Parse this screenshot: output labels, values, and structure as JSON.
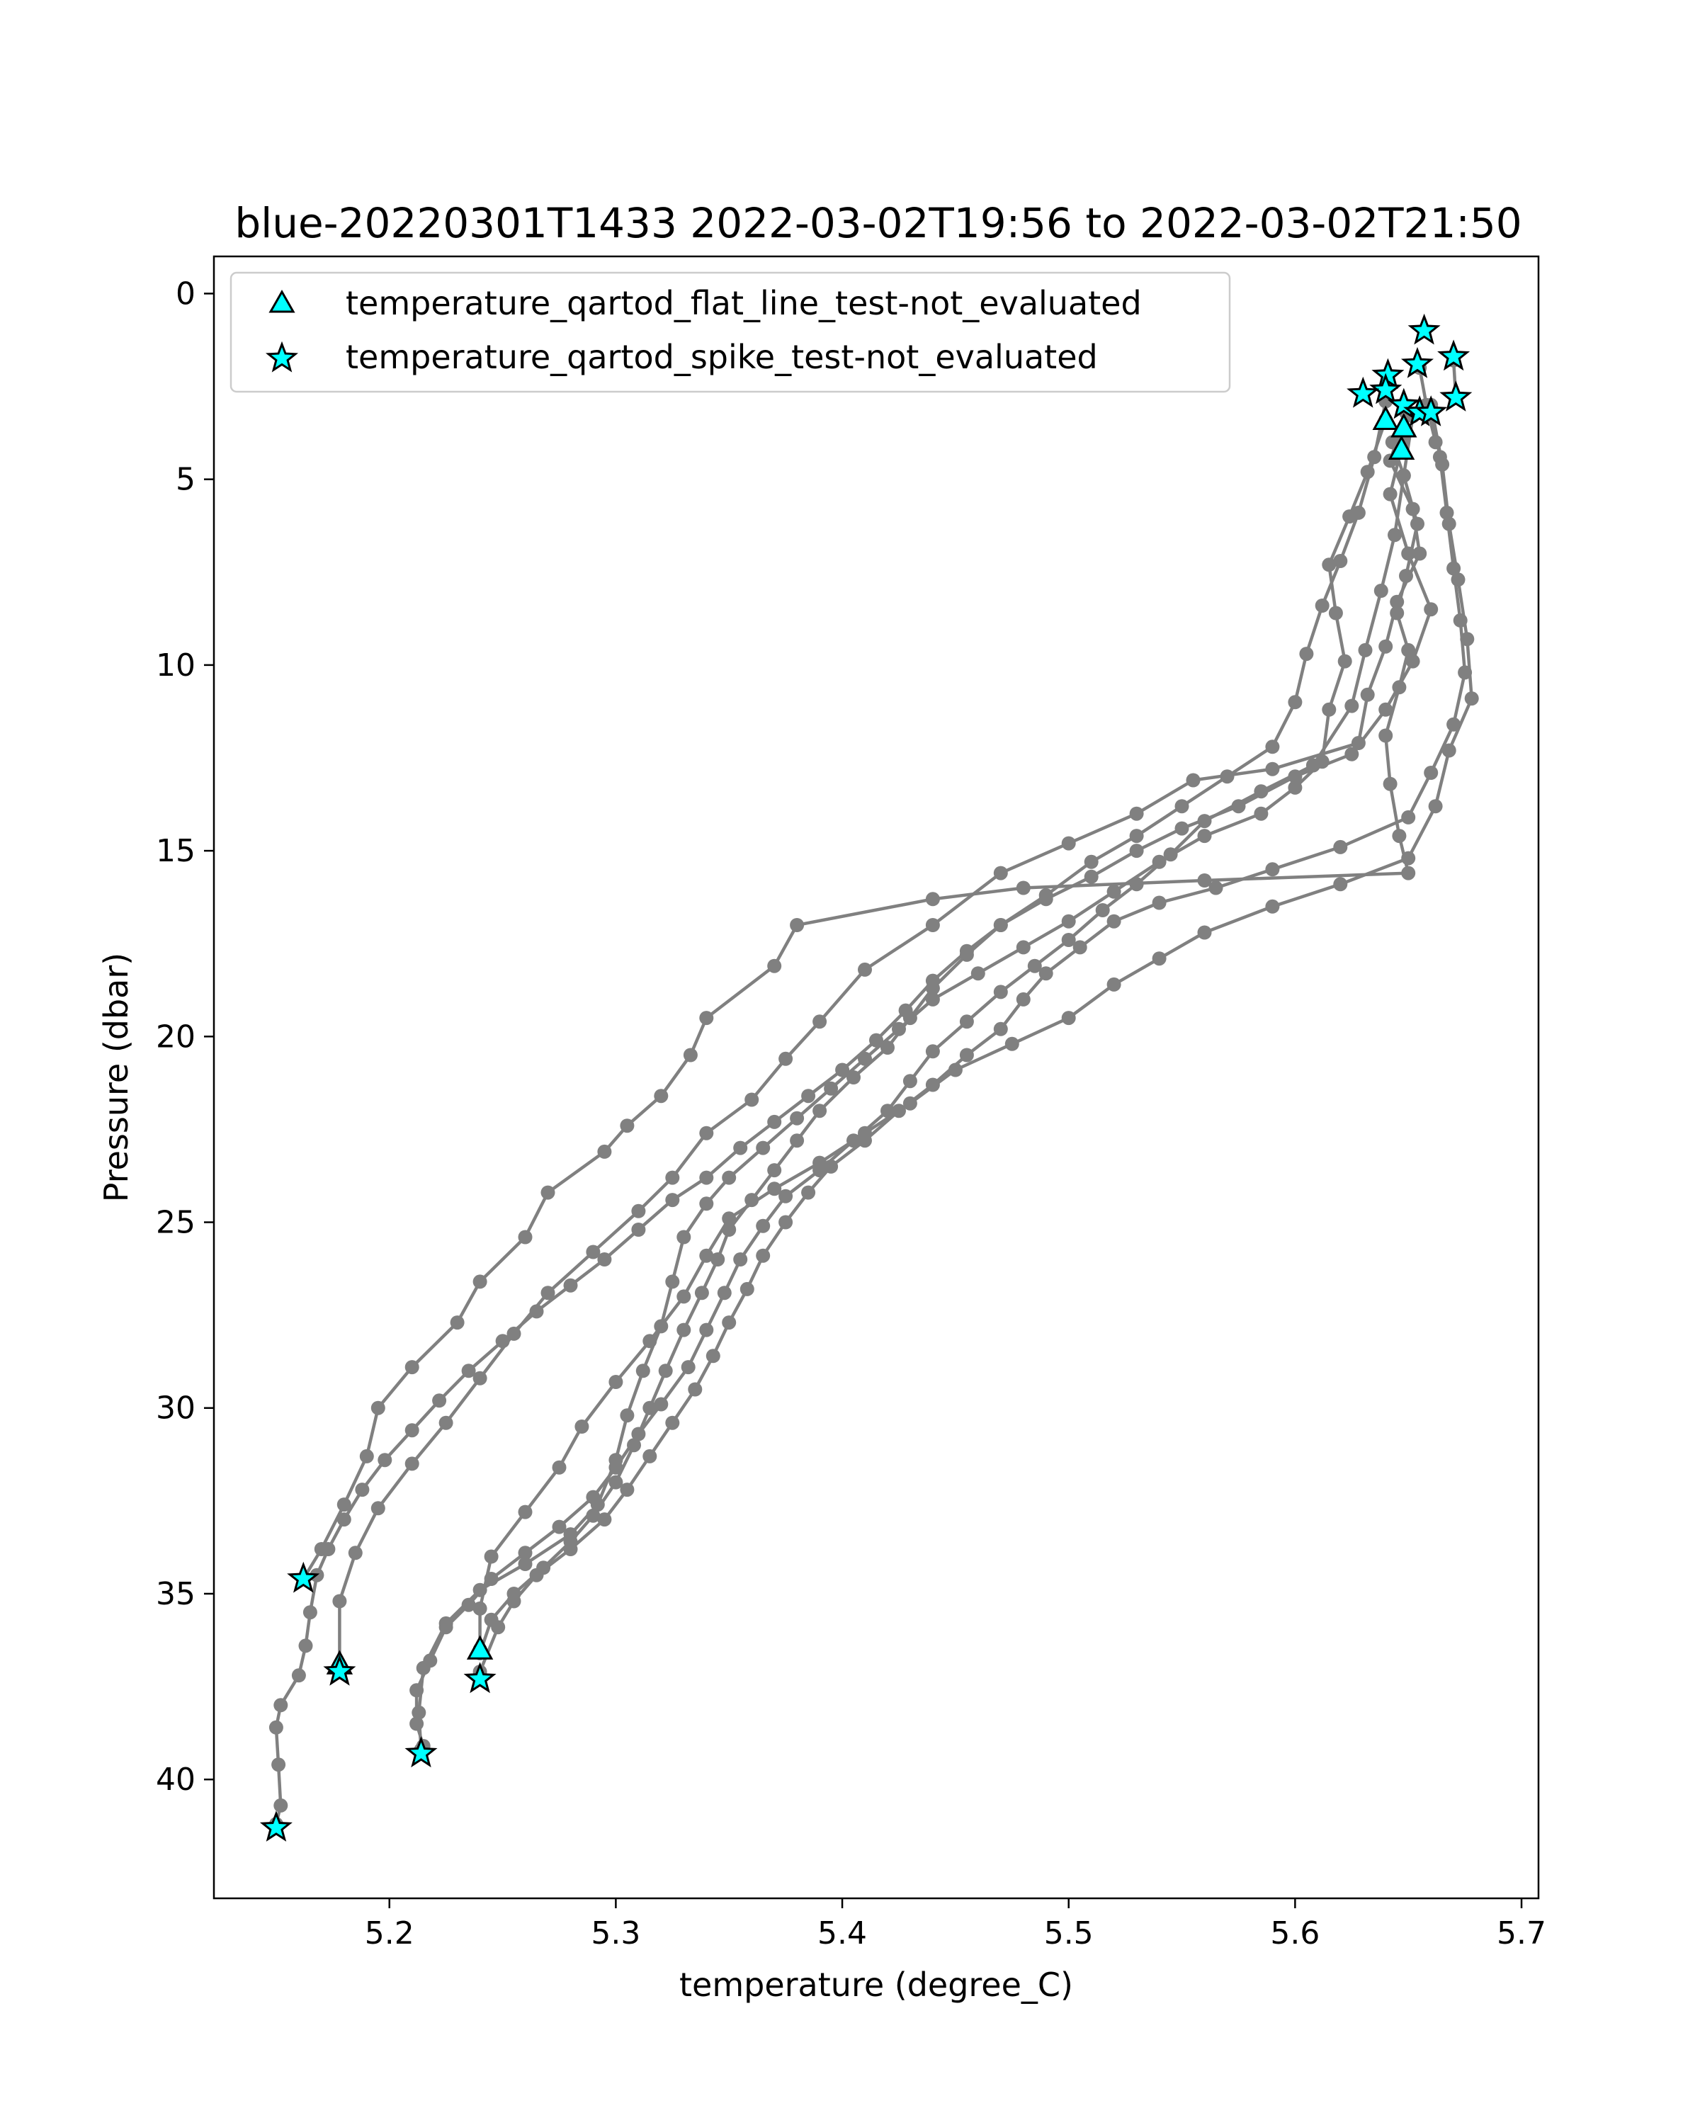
{
  "chart_data": {
    "type": "scatter",
    "title": "blue-20220301T1433 2022-03-02T19:56 to 2022-03-02T21:50",
    "xlabel": "temperature (degree_C)",
    "ylabel": "Pressure (dbar)",
    "xlim": [
      5.1225,
      5.7075
    ],
    "ylim": [
      43.2,
      -1.0
    ],
    "y_inverted": true,
    "xticks": [
      5.2,
      5.3,
      5.4,
      5.5,
      5.6,
      5.7
    ],
    "xtick_labels": [
      "5.2",
      "5.3",
      "5.4",
      "5.5",
      "5.6",
      "5.7"
    ],
    "yticks": [
      0,
      5,
      10,
      15,
      20,
      25,
      30,
      35,
      40
    ],
    "ytick_labels": [
      "0",
      "5",
      "10",
      "15",
      "20",
      "25",
      "30",
      "35",
      "40"
    ],
    "grid": false,
    "legend_position": "upper-left",
    "colors": {
      "profile_line": "#808080",
      "marker_fill": "#00ffff",
      "marker_edge": "#000000"
    },
    "profiles": [
      [
        [
          5.643,
          4.0
        ],
        [
          5.648,
          4.9
        ],
        [
          5.654,
          6.2
        ],
        [
          5.649,
          7.6
        ],
        [
          5.645,
          8.6
        ],
        [
          5.65,
          9.6
        ],
        [
          5.646,
          10.6
        ],
        [
          5.64,
          11.9
        ],
        [
          5.642,
          13.2
        ],
        [
          5.646,
          14.6
        ],
        [
          5.65,
          15.6
        ],
        [
          5.56,
          15.8
        ],
        [
          5.48,
          16.0
        ],
        [
          5.44,
          16.3
        ],
        [
          5.38,
          17.0
        ],
        [
          5.37,
          18.1
        ],
        [
          5.34,
          19.5
        ],
        [
          5.333,
          20.5
        ],
        [
          5.32,
          21.6
        ],
        [
          5.305,
          22.4
        ],
        [
          5.295,
          23.1
        ],
        [
          5.27,
          24.2
        ],
        [
          5.26,
          25.4
        ],
        [
          5.24,
          26.6
        ],
        [
          5.23,
          27.7
        ],
        [
          5.21,
          28.9
        ],
        [
          5.195,
          30.0
        ],
        [
          5.19,
          31.3
        ],
        [
          5.18,
          32.6
        ],
        [
          5.17,
          33.8
        ],
        [
          5.162,
          34.6
        ]
      ],
      [
        [
          5.649,
          3.2
        ],
        [
          5.642,
          4.5
        ],
        [
          5.652,
          5.8
        ],
        [
          5.655,
          7.0
        ],
        [
          5.645,
          8.3
        ],
        [
          5.64,
          9.5
        ],
        [
          5.632,
          10.8
        ],
        [
          5.628,
          12.1
        ],
        [
          5.59,
          12.8
        ],
        [
          5.555,
          13.1
        ],
        [
          5.53,
          14.0
        ],
        [
          5.5,
          14.8
        ],
        [
          5.47,
          15.6
        ],
        [
          5.44,
          17.0
        ],
        [
          5.41,
          18.2
        ],
        [
          5.39,
          19.6
        ],
        [
          5.375,
          20.6
        ],
        [
          5.36,
          21.7
        ],
        [
          5.34,
          22.6
        ],
        [
          5.325,
          23.8
        ],
        [
          5.31,
          24.7
        ],
        [
          5.29,
          25.8
        ],
        [
          5.27,
          26.9
        ],
        [
          5.255,
          28.0
        ],
        [
          5.24,
          29.2
        ],
        [
          5.225,
          30.4
        ],
        [
          5.21,
          31.5
        ],
        [
          5.195,
          32.7
        ],
        [
          5.185,
          33.9
        ],
        [
          5.178,
          35.2
        ],
        [
          5.178,
          37.0
        ]
      ],
      [
        [
          5.66,
          3.0
        ],
        [
          5.665,
          4.6
        ],
        [
          5.668,
          6.2
        ],
        [
          5.672,
          7.7
        ],
        [
          5.676,
          9.3
        ],
        [
          5.678,
          10.9
        ],
        [
          5.668,
          12.3
        ],
        [
          5.662,
          13.8
        ],
        [
          5.65,
          15.2
        ],
        [
          5.62,
          15.9
        ],
        [
          5.59,
          16.5
        ],
        [
          5.56,
          17.2
        ],
        [
          5.54,
          17.9
        ],
        [
          5.52,
          18.6
        ],
        [
          5.5,
          19.5
        ],
        [
          5.475,
          20.2
        ],
        [
          5.45,
          20.9
        ],
        [
          5.43,
          21.8
        ],
        [
          5.41,
          22.6
        ],
        [
          5.39,
          23.4
        ],
        [
          5.37,
          24.1
        ],
        [
          5.35,
          24.9
        ],
        [
          5.34,
          25.9
        ],
        [
          5.33,
          27.0
        ],
        [
          5.315,
          28.2
        ],
        [
          5.3,
          29.3
        ],
        [
          5.285,
          30.5
        ],
        [
          5.275,
          31.6
        ],
        [
          5.26,
          32.8
        ],
        [
          5.245,
          34.0
        ],
        [
          5.24,
          35.4
        ],
        [
          5.24,
          36.5
        ]
      ],
      [
        [
          5.64,
          3.4
        ],
        [
          5.632,
          4.8
        ],
        [
          5.624,
          6.0
        ],
        [
          5.615,
          7.3
        ],
        [
          5.618,
          8.6
        ],
        [
          5.622,
          9.9
        ],
        [
          5.615,
          11.2
        ],
        [
          5.612,
          12.6
        ],
        [
          5.6,
          13.3
        ],
        [
          5.585,
          14.0
        ],
        [
          5.56,
          14.6
        ],
        [
          5.54,
          15.3
        ],
        [
          5.52,
          16.1
        ],
        [
          5.5,
          16.9
        ],
        [
          5.48,
          17.6
        ],
        [
          5.46,
          18.3
        ],
        [
          5.44,
          19.0
        ],
        [
          5.425,
          19.8
        ],
        [
          5.41,
          20.6
        ],
        [
          5.395,
          21.4
        ],
        [
          5.38,
          22.2
        ],
        [
          5.365,
          23.0
        ],
        [
          5.35,
          23.8
        ],
        [
          5.34,
          24.5
        ],
        [
          5.33,
          25.4
        ],
        [
          5.325,
          26.6
        ],
        [
          5.32,
          27.8
        ],
        [
          5.312,
          29.0
        ],
        [
          5.305,
          30.2
        ],
        [
          5.3,
          31.4
        ],
        [
          5.292,
          32.6
        ],
        [
          5.28,
          33.4
        ],
        [
          5.26,
          34.2
        ],
        [
          5.24,
          34.9
        ],
        [
          5.225,
          35.8
        ],
        [
          5.215,
          37.0
        ],
        [
          5.213,
          38.2
        ],
        [
          5.214,
          39.2
        ]
      ],
      [
        [
          5.652,
          3.3
        ],
        [
          5.648,
          4.9
        ],
        [
          5.644,
          6.5
        ],
        [
          5.638,
          8.0
        ],
        [
          5.631,
          9.6
        ],
        [
          5.625,
          11.1
        ],
        [
          5.608,
          12.7
        ],
        [
          5.585,
          13.4
        ],
        [
          5.56,
          14.2
        ],
        [
          5.545,
          15.1
        ],
        [
          5.53,
          15.9
        ],
        [
          5.515,
          16.6
        ],
        [
          5.5,
          17.4
        ],
        [
          5.485,
          18.1
        ],
        [
          5.47,
          18.8
        ],
        [
          5.455,
          19.6
        ],
        [
          5.44,
          20.4
        ],
        [
          5.43,
          21.2
        ],
        [
          5.42,
          22.0
        ],
        [
          5.405,
          22.8
        ],
        [
          5.39,
          23.6
        ],
        [
          5.375,
          24.3
        ],
        [
          5.365,
          25.1
        ],
        [
          5.355,
          26.0
        ],
        [
          5.348,
          26.9
        ],
        [
          5.34,
          27.9
        ],
        [
          5.332,
          28.9
        ],
        [
          5.32,
          29.9
        ],
        [
          5.31,
          30.7
        ],
        [
          5.3,
          31.6
        ],
        [
          5.29,
          32.4
        ],
        [
          5.275,
          33.2
        ],
        [
          5.26,
          33.9
        ],
        [
          5.245,
          34.6
        ],
        [
          5.235,
          35.3
        ],
        [
          5.225,
          35.9
        ],
        [
          5.218,
          36.8
        ],
        [
          5.212,
          37.6
        ],
        [
          5.212,
          38.5
        ],
        [
          5.215,
          39.1
        ]
      ],
      [
        [
          5.66,
          3.1
        ],
        [
          5.664,
          4.4
        ],
        [
          5.667,
          5.9
        ],
        [
          5.67,
          7.4
        ],
        [
          5.673,
          8.8
        ],
        [
          5.675,
          10.2
        ],
        [
          5.67,
          11.6
        ],
        [
          5.66,
          12.9
        ],
        [
          5.65,
          14.1
        ],
        [
          5.62,
          14.9
        ],
        [
          5.59,
          15.5
        ],
        [
          5.565,
          16.0
        ],
        [
          5.54,
          16.4
        ],
        [
          5.52,
          16.9
        ],
        [
          5.505,
          17.6
        ],
        [
          5.49,
          18.3
        ],
        [
          5.48,
          19.0
        ],
        [
          5.47,
          19.8
        ],
        [
          5.455,
          20.5
        ],
        [
          5.44,
          21.3
        ],
        [
          5.425,
          22.0
        ],
        [
          5.41,
          22.8
        ],
        [
          5.395,
          23.5
        ],
        [
          5.385,
          24.2
        ],
        [
          5.375,
          25.0
        ],
        [
          5.365,
          25.9
        ],
        [
          5.358,
          26.8
        ],
        [
          5.35,
          27.7
        ],
        [
          5.343,
          28.6
        ],
        [
          5.335,
          29.5
        ],
        [
          5.325,
          30.4
        ],
        [
          5.315,
          31.3
        ],
        [
          5.305,
          32.2
        ],
        [
          5.295,
          33.0
        ],
        [
          5.28,
          33.8
        ],
        [
          5.265,
          34.5
        ],
        [
          5.255,
          35.2
        ],
        [
          5.248,
          35.9
        ],
        [
          5.24,
          37.1
        ]
      ],
      [
        [
          5.648,
          3.9
        ],
        [
          5.642,
          5.4
        ],
        [
          5.65,
          7.0
        ],
        [
          5.66,
          8.5
        ],
        [
          5.652,
          9.9
        ],
        [
          5.64,
          11.2
        ],
        [
          5.625,
          12.4
        ],
        [
          5.6,
          13.0
        ],
        [
          5.575,
          13.8
        ],
        [
          5.55,
          14.4
        ],
        [
          5.53,
          15.0
        ],
        [
          5.51,
          15.7
        ],
        [
          5.49,
          16.3
        ],
        [
          5.47,
          17.0
        ],
        [
          5.455,
          17.7
        ],
        [
          5.44,
          18.5
        ],
        [
          5.428,
          19.3
        ],
        [
          5.415,
          20.1
        ],
        [
          5.4,
          20.9
        ],
        [
          5.385,
          21.6
        ],
        [
          5.37,
          22.3
        ],
        [
          5.355,
          23.0
        ],
        [
          5.34,
          23.8
        ],
        [
          5.325,
          24.4
        ],
        [
          5.31,
          25.2
        ],
        [
          5.295,
          26.0
        ],
        [
          5.28,
          26.7
        ],
        [
          5.265,
          27.4
        ],
        [
          5.25,
          28.2
        ],
        [
          5.235,
          29.0
        ],
        [
          5.222,
          29.8
        ],
        [
          5.21,
          30.6
        ],
        [
          5.198,
          31.4
        ],
        [
          5.188,
          32.2
        ],
        [
          5.18,
          33.0
        ],
        [
          5.173,
          33.8
        ],
        [
          5.168,
          34.5
        ],
        [
          5.165,
          35.5
        ],
        [
          5.163,
          36.4
        ],
        [
          5.16,
          37.2
        ],
        [
          5.152,
          38.0
        ],
        [
          5.15,
          38.6
        ],
        [
          5.151,
          39.6
        ],
        [
          5.152,
          40.7
        ],
        [
          5.15,
          41.2
        ]
      ],
      [
        [
          5.64,
          2.9
        ],
        [
          5.635,
          4.4
        ],
        [
          5.628,
          5.9
        ],
        [
          5.62,
          7.2
        ],
        [
          5.612,
          8.4
        ],
        [
          5.605,
          9.7
        ],
        [
          5.6,
          11.0
        ],
        [
          5.59,
          12.2
        ],
        [
          5.57,
          13.0
        ],
        [
          5.55,
          13.8
        ],
        [
          5.53,
          14.6
        ],
        [
          5.51,
          15.3
        ],
        [
          5.49,
          16.2
        ],
        [
          5.47,
          17.0
        ],
        [
          5.455,
          17.8
        ],
        [
          5.44,
          18.7
        ],
        [
          5.43,
          19.5
        ],
        [
          5.42,
          20.3
        ],
        [
          5.405,
          21.1
        ],
        [
          5.39,
          22.0
        ],
        [
          5.38,
          22.8
        ],
        [
          5.37,
          23.6
        ],
        [
          5.36,
          24.4
        ],
        [
          5.35,
          25.2
        ],
        [
          5.345,
          26.0
        ],
        [
          5.338,
          26.9
        ],
        [
          5.33,
          27.9
        ],
        [
          5.322,
          29.0
        ],
        [
          5.315,
          30.0
        ],
        [
          5.308,
          31.0
        ],
        [
          5.3,
          32.0
        ],
        [
          5.29,
          32.9
        ],
        [
          5.28,
          33.6
        ],
        [
          5.268,
          34.3
        ],
        [
          5.255,
          35.0
        ],
        [
          5.245,
          35.7
        ],
        [
          5.24,
          36.6
        ]
      ],
      [
        [
          5.655,
          2.0
        ],
        [
          5.658,
          3.0
        ],
        [
          5.662,
          4.0
        ]
      ],
      [
        [
          5.67,
          1.8
        ],
        [
          5.671,
          2.8
        ]
      ]
    ],
    "flat_line_not_evaluated": {
      "name": "temperature_qartod_flat_line_test-not_evaluated",
      "points": [
        [
          5.64,
          3.4
        ],
        [
          5.648,
          3.6
        ],
        [
          5.647,
          4.2
        ],
        [
          5.178,
          36.9
        ],
        [
          5.24,
          36.5
        ]
      ]
    },
    "spike_not_evaluated": {
      "name": "temperature_qartod_spike_test-not_evaluated",
      "points": [
        [
          5.657,
          1.0
        ],
        [
          5.67,
          1.7
        ],
        [
          5.654,
          1.9
        ],
        [
          5.641,
          2.2
        ],
        [
          5.64,
          2.6
        ],
        [
          5.63,
          2.7
        ],
        [
          5.648,
          3.0
        ],
        [
          5.671,
          2.8
        ],
        [
          5.655,
          3.2
        ],
        [
          5.66,
          3.2
        ],
        [
          5.162,
          34.6
        ],
        [
          5.178,
          37.1
        ],
        [
          5.24,
          37.3
        ],
        [
          5.214,
          39.3
        ],
        [
          5.15,
          41.3
        ]
      ]
    }
  }
}
